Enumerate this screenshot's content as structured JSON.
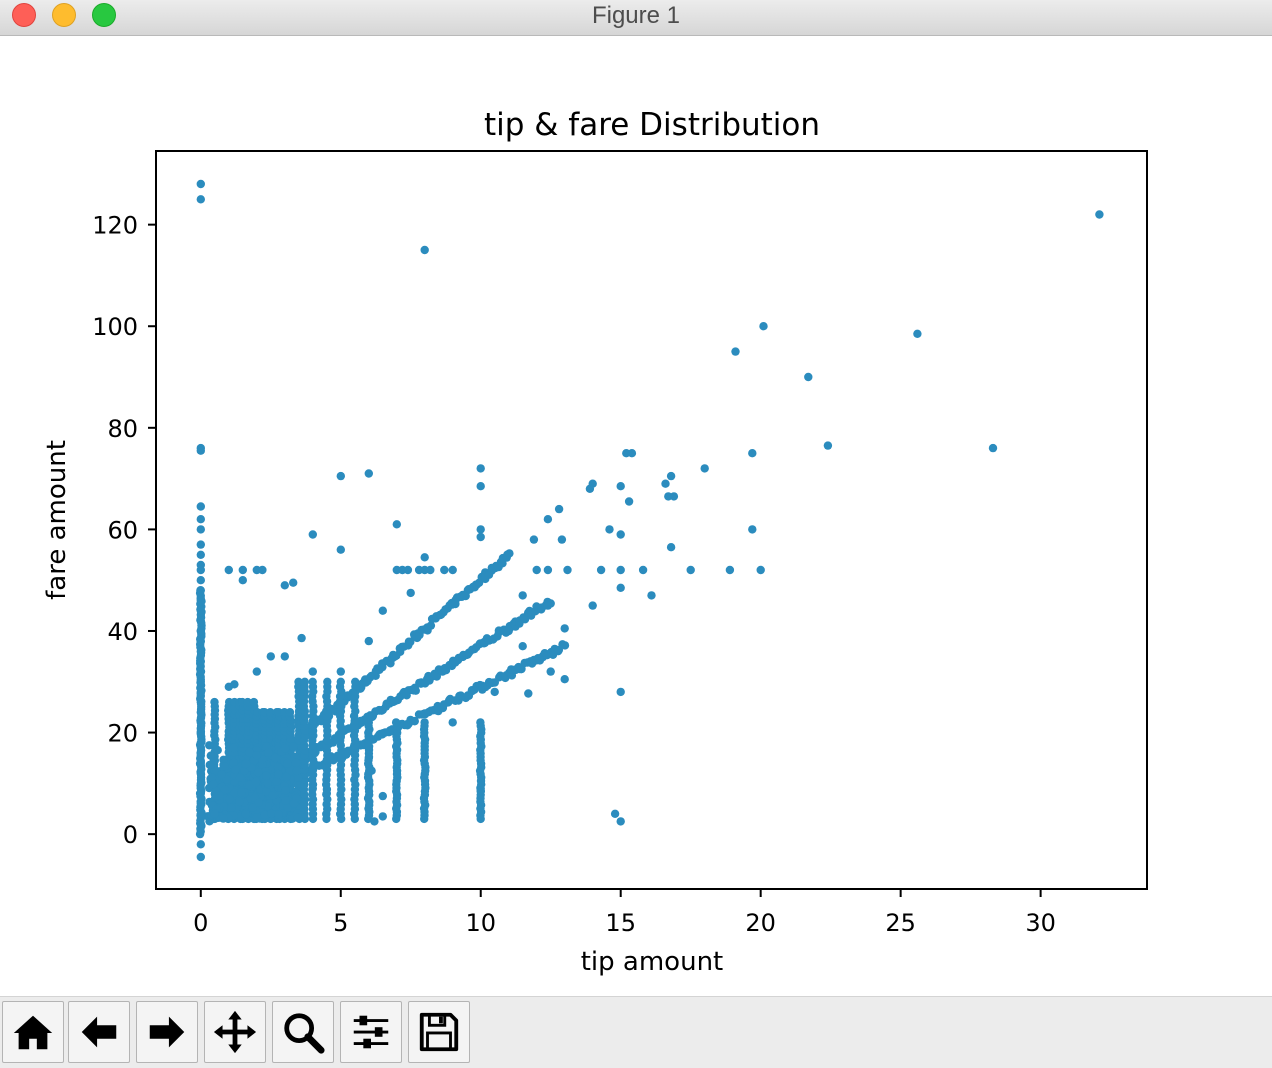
{
  "window": {
    "title": "Figure 1"
  },
  "toolbar": {
    "buttons": [
      {
        "icon": "home-icon"
      },
      {
        "icon": "back-arrow-icon"
      },
      {
        "icon": "forward-arrow-icon"
      },
      {
        "icon": "pan-move-icon"
      },
      {
        "icon": "zoom-magnifier-icon"
      },
      {
        "icon": "subplots-sliders-icon"
      },
      {
        "icon": "save-floppy-icon"
      }
    ]
  },
  "chart_data": {
    "type": "scatter",
    "title": "tip & fare Distribution",
    "xlabel": "tip amount",
    "ylabel": "fare amount",
    "xlim": [
      -1.6,
      33.8
    ],
    "ylim": [
      -10.8,
      134.5
    ],
    "xticks": [
      0,
      5,
      10,
      15,
      20,
      25,
      30
    ],
    "yticks": [
      0,
      20,
      40,
      60,
      80,
      100,
      120
    ],
    "marker_color": "#2b8cbe",
    "grid": false,
    "points": [
      [
        0,
        128
      ],
      [
        0,
        125
      ],
      [
        0,
        76
      ],
      [
        0,
        75.5
      ],
      [
        0,
        64.5
      ],
      [
        0,
        62
      ],
      [
        0,
        60
      ],
      [
        0,
        57
      ],
      [
        0,
        55
      ],
      [
        0,
        53
      ],
      [
        0,
        52
      ],
      [
        0,
        50
      ],
      [
        0,
        48
      ],
      [
        0,
        46
      ],
      [
        0,
        44
      ],
      [
        0,
        42
      ],
      [
        0,
        40
      ],
      [
        0,
        38
      ],
      [
        0,
        36
      ],
      [
        0,
        34
      ],
      [
        0,
        32
      ],
      [
        0,
        30
      ],
      [
        0,
        28
      ],
      [
        0,
        26
      ],
      [
        0,
        24
      ],
      [
        0,
        22
      ],
      [
        0,
        20
      ],
      [
        0,
        18
      ],
      [
        0,
        16
      ],
      [
        0,
        14
      ],
      [
        0,
        12
      ],
      [
        0,
        10
      ],
      [
        0,
        8
      ],
      [
        0,
        6
      ],
      [
        0,
        4
      ],
      [
        0,
        2
      ],
      [
        0,
        -2
      ],
      [
        0,
        -4.5
      ],
      [
        8,
        115
      ],
      [
        32.1,
        122
      ],
      [
        20.1,
        100
      ],
      [
        19.1,
        95
      ],
      [
        25.6,
        98.5
      ],
      [
        21.7,
        90
      ],
      [
        22.4,
        76.5
      ],
      [
        28.3,
        76
      ],
      [
        19.7,
        75
      ],
      [
        15.2,
        75
      ],
      [
        15.4,
        75
      ],
      [
        16.8,
        70.5
      ],
      [
        16.6,
        69
      ],
      [
        18,
        72
      ],
      [
        10,
        72
      ],
      [
        10,
        68.5
      ],
      [
        14,
        69
      ],
      [
        13.9,
        68
      ],
      [
        15,
        68.5
      ],
      [
        15.3,
        65.5
      ],
      [
        16.7,
        66.5
      ],
      [
        16.9,
        66.5
      ],
      [
        12.8,
        64
      ],
      [
        12.4,
        62
      ],
      [
        14.6,
        60
      ],
      [
        15,
        59
      ],
      [
        19.7,
        60
      ],
      [
        5,
        70.5
      ],
      [
        6,
        71
      ],
      [
        7,
        61
      ],
      [
        4,
        59
      ],
      [
        5,
        56
      ],
      [
        8,
        54.5
      ],
      [
        10,
        60
      ],
      [
        10,
        58.5
      ],
      [
        11.9,
        58
      ],
      [
        12.9,
        58
      ],
      [
        16.8,
        56.5
      ],
      [
        16.1,
        47
      ],
      [
        15,
        48.5
      ],
      [
        14,
        45
      ],
      [
        1,
        52
      ],
      [
        1.5,
        52
      ],
      [
        2,
        52
      ],
      [
        2.2,
        52
      ],
      [
        1.5,
        50
      ],
      [
        3,
        49
      ],
      [
        3.3,
        49.5
      ],
      [
        3.6,
        38.6
      ],
      [
        8,
        52
      ],
      [
        7,
        52
      ],
      [
        7.2,
        52
      ],
      [
        7.4,
        52
      ],
      [
        7.8,
        52
      ],
      [
        8.2,
        52
      ],
      [
        8.7,
        52
      ],
      [
        9,
        52
      ],
      [
        12,
        52
      ],
      [
        12.4,
        52
      ],
      [
        13.1,
        52
      ],
      [
        14.3,
        52
      ],
      [
        15,
        52
      ],
      [
        15.8,
        52
      ],
      [
        17.5,
        52
      ],
      [
        18.9,
        52
      ],
      [
        20,
        52
      ],
      [
        10,
        9
      ],
      [
        10,
        8.5
      ],
      [
        15,
        28
      ],
      [
        14.8,
        4
      ],
      [
        15,
        2.5
      ],
      [
        9,
        22
      ],
      [
        10.5,
        28
      ],
      [
        5,
        4
      ],
      [
        6,
        5
      ],
      [
        6.2,
        2.5
      ],
      [
        6.5,
        3.5
      ],
      [
        6,
        15
      ],
      [
        6.1,
        12.5
      ],
      [
        6.5,
        7.5
      ],
      [
        4,
        9
      ],
      [
        4.5,
        8
      ],
      [
        11.5,
        47
      ],
      [
        12.4,
        45
      ],
      [
        11.8,
        43
      ],
      [
        13,
        40.5
      ],
      [
        11,
        40
      ],
      [
        11.5,
        37
      ],
      [
        12.1,
        34.5
      ],
      [
        12.5,
        32
      ],
      [
        11.4,
        32.5
      ],
      [
        13,
        30.5
      ],
      [
        11.7,
        27.7
      ],
      [
        3,
        35
      ],
      [
        2.5,
        35
      ],
      [
        2,
        32
      ],
      [
        1,
        29
      ],
      [
        1.2,
        29.5
      ],
      [
        0.3,
        17.5
      ],
      [
        5,
        32
      ],
      [
        4,
        32
      ],
      [
        7.5,
        47.5
      ],
      [
        6.5,
        44
      ],
      [
        6,
        38
      ]
    ],
    "bands": [
      {
        "x0": 0.3,
        "x1": 11,
        "y0": 3,
        "y1": 55
      },
      {
        "x0": 0.3,
        "x1": 12.5,
        "y0": 3,
        "y1": 46
      },
      {
        "x0": 0.3,
        "x1": 13,
        "y0": 3,
        "y1": 37
      }
    ],
    "columns": [
      0,
      0.5,
      1,
      1.2,
      1.4,
      1.5,
      1.7,
      1.9,
      2,
      2.2,
      2.3,
      2.5,
      2.7,
      2.8,
      3,
      3.2,
      3.5,
      3.7,
      4,
      4.5,
      5,
      5.5,
      6,
      7,
      8,
      10
    ],
    "blob": {
      "x0": 0.3,
      "x1": 3.5,
      "y0": 3,
      "y1": 18
    }
  }
}
